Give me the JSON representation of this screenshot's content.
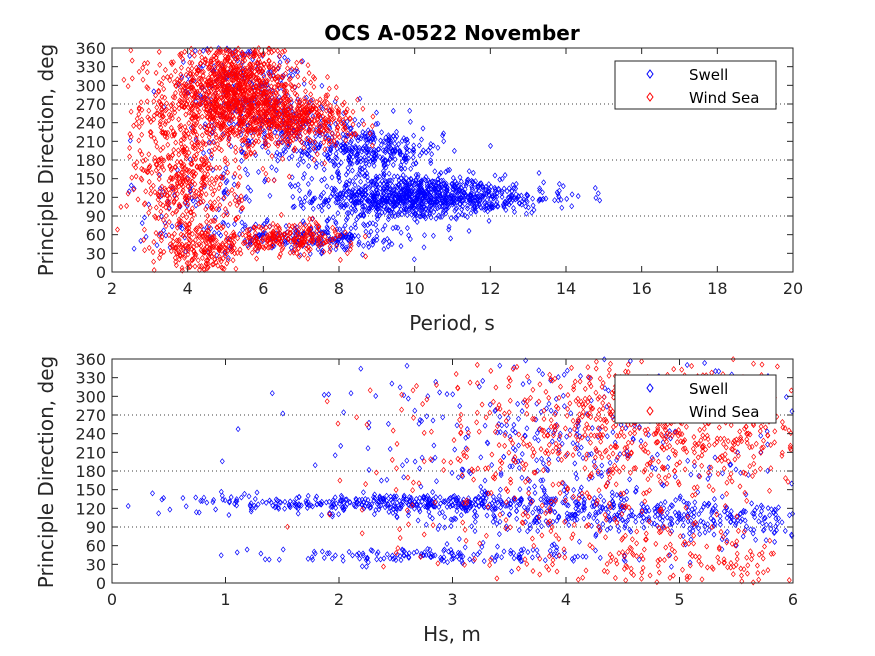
{
  "colors": {
    "swell": "#0000ff",
    "wind_sea": "#ff0000",
    "axes": "#262626",
    "background": "#ffffff"
  },
  "chart_data": [
    {
      "type": "scatter",
      "title": "OCS A-0522 November",
      "xlabel": "Period, s",
      "ylabel": "Principle Direction, deg",
      "xlim": [
        2,
        20
      ],
      "ylim": [
        0,
        360
      ],
      "xticks": [
        "2",
        "4",
        "6",
        "8",
        "10",
        "12",
        "14",
        "16",
        "18",
        "20"
      ],
      "yticks": [
        "0",
        "30",
        "60",
        "90",
        "120",
        "150",
        "180",
        "210",
        "240",
        "270",
        "300",
        "330",
        "360"
      ],
      "reference_lines_y": [
        90,
        180,
        270
      ],
      "marker": "diamond",
      "legend": {
        "position": "top-right",
        "entries": [
          "Swell",
          "Wind Sea"
        ]
      },
      "series": [
        {
          "name": "Swell",
          "color": "#0000ff",
          "clusters": [
            {
              "x": 9.8,
              "y": 120,
              "sx": 1.2,
              "sy": 18,
              "n": 850
            },
            {
              "x": 11.8,
              "y": 118,
              "sx": 0.9,
              "sy": 12,
              "n": 150
            },
            {
              "x": 13.5,
              "y": 125,
              "sx": 1.0,
              "sy": 12,
              "n": 30
            },
            {
              "x": 8.8,
              "y": 195,
              "sx": 1.0,
              "sy": 18,
              "n": 320
            },
            {
              "x": 7.5,
              "y": 55,
              "sx": 1.2,
              "sy": 12,
              "n": 220
            },
            {
              "x": 5.5,
              "y": 300,
              "sx": 0.8,
              "sy": 40,
              "n": 250
            },
            {
              "x": 4.5,
              "y": 100,
              "sx": 1.0,
              "sy": 60,
              "n": 110
            },
            {
              "x": 7.0,
              "y": 230,
              "sx": 1.0,
              "sy": 25,
              "n": 150
            }
          ]
        },
        {
          "name": "Wind Sea",
          "color": "#ff0000",
          "clusters": [
            {
              "x": 5.2,
              "y": 290,
              "sx": 0.9,
              "sy": 40,
              "n": 1100
            },
            {
              "x": 6.8,
              "y": 245,
              "sx": 0.8,
              "sy": 20,
              "n": 450
            },
            {
              "x": 4.0,
              "y": 130,
              "sx": 0.7,
              "sy": 50,
              "n": 350
            },
            {
              "x": 4.4,
              "y": 30,
              "sx": 0.5,
              "sy": 20,
              "n": 180
            },
            {
              "x": 6.6,
              "y": 55,
              "sx": 0.9,
              "sy": 12,
              "n": 250
            },
            {
              "x": 3.5,
              "y": 220,
              "sx": 0.6,
              "sy": 60,
              "n": 160
            }
          ]
        }
      ]
    },
    {
      "type": "scatter",
      "title": "",
      "xlabel": "Hs, m",
      "ylabel": "Principle Direction, deg",
      "xlim": [
        0,
        6
      ],
      "ylim": [
        0,
        360
      ],
      "xticks": [
        "0",
        "1",
        "2",
        "3",
        "4",
        "5",
        "6"
      ],
      "yticks": [
        "0",
        "30",
        "60",
        "90",
        "120",
        "150",
        "180",
        "210",
        "240",
        "270",
        "300",
        "330",
        "360"
      ],
      "reference_lines_y": [
        90,
        180,
        270
      ],
      "marker": "diamond",
      "legend": {
        "position": "top-right",
        "entries": [
          "Swell",
          "Wind Sea"
        ]
      },
      "series": [
        {
          "name": "Swell",
          "color": "#0000ff",
          "clusters": [
            {
              "x": 2.6,
              "y": 128,
              "sx": 0.9,
              "sy": 8,
              "n": 420
            },
            {
              "x": 4.5,
              "y": 110,
              "sx": 0.9,
              "sy": 14,
              "n": 300
            },
            {
              "x": 2.8,
              "y": 45,
              "sx": 0.8,
              "sy": 6,
              "n": 150
            },
            {
              "x": 3.9,
              "y": 210,
              "sx": 1.0,
              "sy": 80,
              "n": 380
            },
            {
              "x": 5.6,
              "y": 95,
              "sx": 0.3,
              "sy": 20,
              "n": 80
            }
          ]
        },
        {
          "name": "Wind Sea",
          "color": "#ff0000",
          "clusters": [
            {
              "x": 4.9,
              "y": 260,
              "sx": 0.7,
              "sy": 50,
              "n": 500
            },
            {
              "x": 4.2,
              "y": 180,
              "sx": 1.0,
              "sy": 100,
              "n": 450
            },
            {
              "x": 5.0,
              "y": 40,
              "sx": 0.7,
              "sy": 30,
              "n": 150
            }
          ]
        }
      ]
    }
  ]
}
